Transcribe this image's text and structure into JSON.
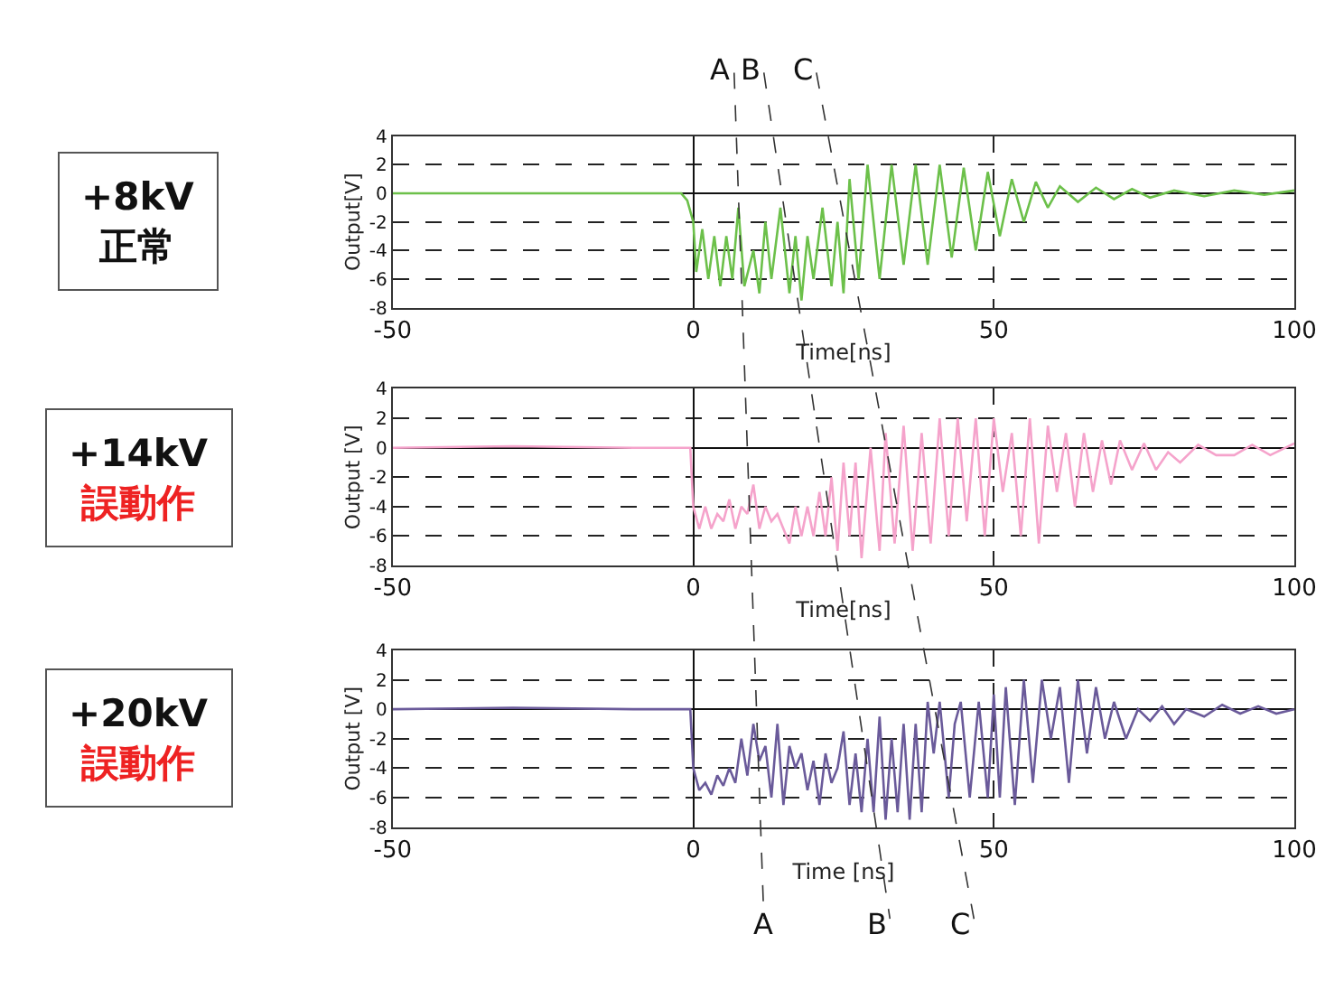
{
  "chart_data": [
    {
      "type": "line",
      "title": "+8kV",
      "subtitle": "正常",
      "xlabel": "Time[ns]",
      "ylabel": "Output[V]",
      "xlim": [
        -50,
        100
      ],
      "xticks": [
        -50,
        0,
        50,
        100
      ],
      "ylim": [
        -8,
        4
      ],
      "yticks": [
        -8,
        -6,
        -4,
        -2,
        0,
        2,
        4
      ],
      "grid": true,
      "line_style": "solid",
      "annotations": [
        "A",
        "B",
        "C"
      ],
      "series": [
        {
          "color": "#6cc04a",
          "x": [
            -50,
            -30,
            -10,
            -2,
            -1,
            0,
            0.5,
            1.5,
            2.5,
            3.5,
            4.5,
            5.5,
            6.5,
            7.5,
            8.5,
            10,
            11,
            12,
            13,
            14.5,
            16,
            17,
            18,
            19,
            20,
            21.5,
            23,
            24,
            25,
            26,
            27.5,
            29,
            31,
            33,
            35,
            37,
            39,
            41,
            43,
            45,
            47,
            49,
            51,
            53,
            55,
            57,
            59,
            61,
            64,
            67,
            70,
            73,
            76,
            80,
            85,
            90,
            95,
            100
          ],
          "values": [
            0,
            0,
            0,
            0,
            -0.5,
            -2,
            -5.5,
            -2.5,
            -6,
            -3,
            -6.5,
            -3,
            -6,
            -1,
            -6.5,
            -4,
            -7,
            -2,
            -6,
            -1,
            -7,
            -3,
            -7.5,
            -3,
            -6,
            -1,
            -6.5,
            -2,
            -7,
            1,
            -6,
            2,
            -6,
            2,
            -5,
            2,
            -5,
            2,
            -4.5,
            1.8,
            -4,
            1.5,
            -3,
            1,
            -2,
            0.8,
            -1,
            0.5,
            -0.6,
            0.4,
            -0.4,
            0.3,
            -0.3,
            0.2,
            -0.2,
            0.2,
            -0.1,
            0.2
          ]
        }
      ]
    },
    {
      "type": "line",
      "title": "+14kV",
      "subtitle": "誤動作",
      "xlabel": "Time[ns]",
      "ylabel": "Output [V]",
      "xlim": [
        -50,
        100
      ],
      "xticks": [
        -50,
        0,
        50,
        100
      ],
      "ylim": [
        -8,
        4
      ],
      "yticks": [
        -8,
        -6,
        -4,
        -2,
        0,
        2,
        4
      ],
      "grid": true,
      "line_style": "solid",
      "series": [
        {
          "color": "#f5a3cb",
          "x": [
            -50,
            -30,
            -10,
            -0.5,
            0,
            1,
            2,
            3,
            4,
            5,
            6,
            7,
            8,
            9,
            10,
            11,
            12,
            13,
            14,
            16,
            17,
            18,
            19,
            20,
            21,
            22,
            23,
            24,
            25,
            26,
            27,
            28,
            29.5,
            31,
            32,
            33.5,
            35,
            36.5,
            38,
            39.5,
            41,
            42.5,
            44,
            45.5,
            47,
            48.5,
            50,
            51.5,
            53,
            54.5,
            56,
            57.5,
            59,
            60.5,
            62,
            63.5,
            65,
            66.5,
            68,
            69.5,
            71,
            73,
            75,
            77,
            79,
            81,
            84,
            87,
            90,
            93,
            96,
            100
          ],
          "values": [
            0,
            0.1,
            0,
            0,
            -4,
            -5.5,
            -4,
            -5.5,
            -4.5,
            -5,
            -3.5,
            -5.5,
            -4,
            -4.5,
            -2.5,
            -5.5,
            -4,
            -5,
            -4.5,
            -6.5,
            -4,
            -6,
            -4,
            -6,
            -3,
            -6,
            -2,
            -7,
            -1,
            -6,
            -1,
            -7.5,
            0,
            -7,
            1,
            -6.5,
            1.5,
            -7,
            1,
            -6.5,
            2,
            -6,
            2,
            -5,
            2,
            -6,
            2,
            -3,
            1,
            -6,
            2,
            -6.5,
            1.5,
            -3,
            1,
            -4,
            1,
            -3,
            0.5,
            -2.5,
            0.5,
            -1.5,
            0.3,
            -1.5,
            -0.3,
            -1,
            0.2,
            -0.5,
            -0.5,
            0.2,
            -0.5,
            0.3
          ]
        }
      ]
    },
    {
      "type": "line",
      "title": "+20kV",
      "subtitle": "誤動作",
      "xlabel": "Time [ns]",
      "ylabel": "Output [V]",
      "xlim": [
        -50,
        100
      ],
      "xticks": [
        -50,
        0,
        50,
        100
      ],
      "ylim": [
        -8,
        4
      ],
      "yticks": [
        -8,
        -6,
        -4,
        -2,
        0,
        2,
        4
      ],
      "grid": true,
      "line_style": "solid",
      "annotations": [
        "A",
        "B",
        "C"
      ],
      "series": [
        {
          "color": "#6a5a9a",
          "x": [
            -50,
            -30,
            -10,
            -0.5,
            0,
            1,
            2,
            3,
            4,
            5,
            6,
            7,
            8,
            9,
            10,
            11,
            12,
            13,
            14,
            15,
            16,
            17,
            18,
            19,
            20,
            21,
            22,
            23,
            24,
            25,
            26,
            27,
            28,
            29,
            30,
            31,
            32,
            33,
            34,
            35,
            36,
            37,
            38,
            39,
            40,
            41,
            42.5,
            43.5,
            44.5,
            46,
            47.5,
            49,
            50,
            51,
            52,
            53.5,
            55,
            56.5,
            58,
            59.5,
            61,
            62.5,
            64,
            65.5,
            67,
            68.5,
            70,
            72,
            74,
            76,
            78,
            80,
            82,
            85,
            88,
            91,
            94,
            97,
            100
          ],
          "values": [
            0,
            0.1,
            0,
            0,
            -4,
            -5.5,
            -5,
            -5.8,
            -4.5,
            -5.2,
            -4,
            -5,
            -2,
            -4.5,
            -1,
            -3.5,
            -2.5,
            -6,
            -1,
            -6.5,
            -2.5,
            -4,
            -3,
            -5.5,
            -3.5,
            -6.5,
            -3,
            -5,
            -4,
            -1.5,
            -6.5,
            -3,
            -7,
            -2,
            -7,
            -0.5,
            -7.5,
            -2,
            -7,
            -1,
            -7.5,
            -1,
            -7,
            0.5,
            -3,
            0.5,
            -6,
            -1,
            0.5,
            -6,
            0.5,
            -6,
            1,
            -6,
            1.5,
            -6.5,
            2,
            -5,
            2,
            -2,
            1.5,
            -5,
            2,
            -3,
            1.5,
            -2,
            0.5,
            -2,
            0,
            -0.8,
            0.2,
            -1,
            0,
            -0.5,
            0.3,
            -0.3,
            0.2,
            -0.3,
            0
          ]
        }
      ]
    }
  ]
}
